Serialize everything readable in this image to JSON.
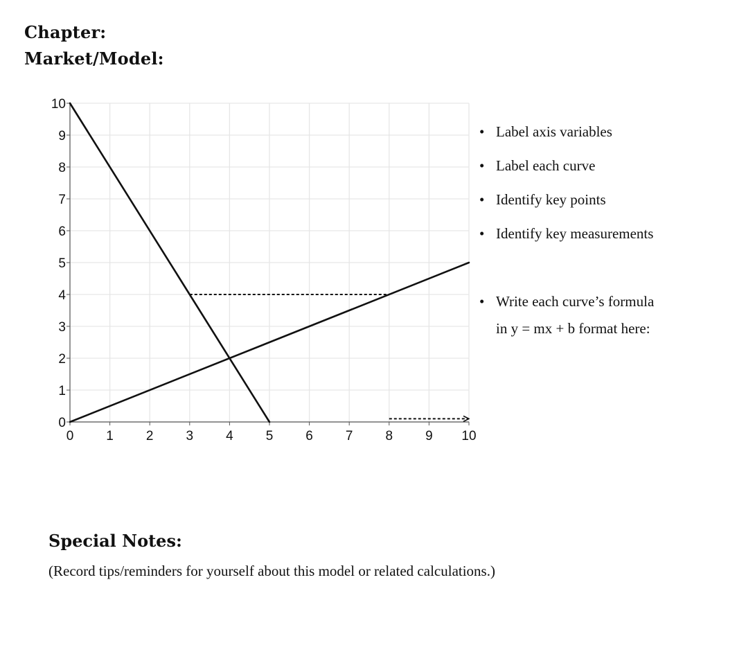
{
  "header": {
    "chapter_label": "Chapter:",
    "model_label": "Market/Model:"
  },
  "chart_data": {
    "type": "line",
    "title": "",
    "xlabel": "",
    "ylabel": "",
    "xlim": [
      0,
      10
    ],
    "ylim": [
      0,
      10
    ],
    "xticks": [
      "0",
      "1",
      "2",
      "3",
      "4",
      "5",
      "6",
      "7",
      "8",
      "9",
      "10"
    ],
    "yticks": [
      "0",
      "1",
      "2",
      "3",
      "4",
      "5",
      "6",
      "7",
      "8",
      "9",
      "10"
    ],
    "grid": true,
    "series": [
      {
        "points": [
          [
            0,
            10
          ],
          [
            5,
            0
          ]
        ],
        "style": "solid"
      },
      {
        "points": [
          [
            0,
            0
          ],
          [
            10,
            5
          ]
        ],
        "style": "solid"
      }
    ],
    "annotations": [
      {
        "type": "dashed-line",
        "from": [
          3,
          4
        ],
        "to": [
          8,
          4
        ]
      },
      {
        "type": "dashed-arrow",
        "from": [
          8,
          0.1
        ],
        "to": [
          10,
          0.1
        ]
      }
    ],
    "intersection": [
      4,
      2
    ],
    "colors": {
      "line": "#111111",
      "grid": "#e6e6e6",
      "axis": "#555555"
    }
  },
  "bullets": [
    {
      "text": "Label axis variables"
    },
    {
      "text": "Label each curve"
    },
    {
      "text": "Identify key points"
    },
    {
      "text": "Identify key measurements"
    },
    {
      "text": "Write each curve’s formula",
      "continuation": "in y = mx + b format here:"
    }
  ],
  "notes": {
    "title": "Special Notes:",
    "subtitle": "(Record tips/reminders for yourself about this model or related calculations.)"
  }
}
